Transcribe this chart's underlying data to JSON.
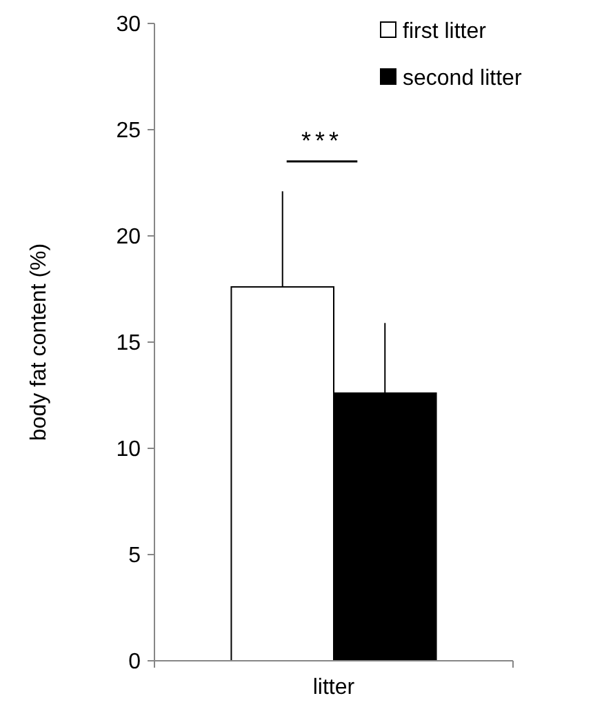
{
  "chart_data": {
    "type": "bar",
    "ylabel": "body fat content (%)",
    "categories": [
      "litter"
    ],
    "ylim": [
      0,
      30
    ],
    "yticks": [
      0,
      5,
      10,
      15,
      20,
      25,
      30
    ],
    "grid": false,
    "legend": "top right",
    "series": [
      {
        "name": "first litter",
        "color": "#ffffff",
        "values": [
          17.6
        ],
        "errors": [
          [
            17.6,
            22.1
          ]
        ]
      },
      {
        "name": "second litter",
        "color": "#000000",
        "values": [
          12.6
        ],
        "errors": [
          [
            12.6,
            15.9
          ]
        ]
      }
    ],
    "annotations": [
      "***"
    ]
  }
}
